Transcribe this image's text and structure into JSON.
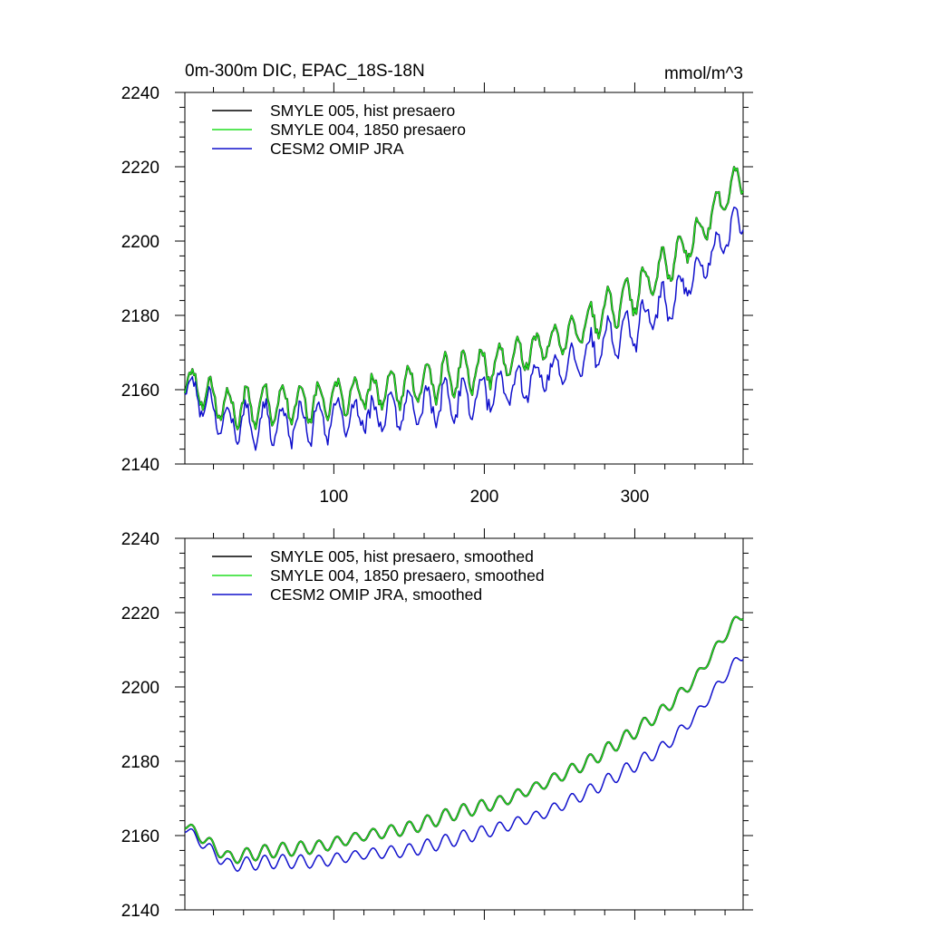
{
  "colors": {
    "hist": "#000000",
    "presaero1850": "#22dd22",
    "omip": "#1010cc"
  },
  "chart_data": [
    {
      "type": "line",
      "title": "0m-300m DIC, EPAC_18S-18N",
      "units": "mmol/m^3",
      "xlabel": "",
      "ylabel": "",
      "xlim": [
        1,
        372
      ],
      "ylim": [
        2140,
        2240
      ],
      "yticks": [
        "2140",
        "2160",
        "2180",
        "2200",
        "2220",
        "2240"
      ],
      "xticks": [
        "100",
        "200",
        "300"
      ],
      "legend": "top-left",
      "trend_knots": {
        "x": [
          1,
          30,
          60,
          90,
          120,
          150,
          180,
          210,
          240,
          270,
          300,
          320,
          340,
          360,
          372
        ],
        "base": [
          2163,
          2155,
          2156,
          2157,
          2159,
          2161,
          2164,
          2167,
          2172,
          2178,
          2186,
          2193,
          2201,
          2212,
          2218
        ],
        "omip_offset": [
          0,
          -3,
          -4,
          -4,
          -5,
          -5,
          -6,
          -6,
          -7,
          -7,
          -8,
          -9,
          -9,
          -10,
          -10
        ]
      },
      "seasonal_amplitude": 4.5,
      "noise_amplitude": 3.0,
      "series": [
        {
          "name": "SMYLE 005, hist presaero",
          "color": "#000000"
        },
        {
          "name": "SMYLE 004, 1850 presaero",
          "color": "#22dd22"
        },
        {
          "name": "CESM2 OMIP JRA",
          "color": "#1010cc"
        }
      ]
    },
    {
      "type": "line",
      "title": "",
      "xlabel": "",
      "ylabel": "",
      "xlim": [
        1,
        372
      ],
      "ylim": [
        2140,
        2240
      ],
      "yticks": [
        "2140",
        "2160",
        "2180",
        "2200",
        "2220",
        "2240"
      ],
      "xticks": [],
      "legend": "top-left",
      "trend_knots": {
        "x": [
          1,
          30,
          60,
          90,
          120,
          150,
          180,
          210,
          240,
          270,
          300,
          320,
          340,
          360,
          372
        ],
        "base": [
          2163,
          2154,
          2156,
          2157,
          2160,
          2162,
          2166,
          2169,
          2174,
          2180,
          2188,
          2194,
          2202,
          2214,
          2220
        ],
        "omip_offset": [
          -1,
          -2,
          -3,
          -4,
          -5,
          -6,
          -7,
          -7,
          -8,
          -8,
          -9,
          -10,
          -10,
          -11,
          -11
        ]
      },
      "seasonal_amplitude": 1.6,
      "noise_amplitude": 0.0,
      "series": [
        {
          "name": "SMYLE 005, hist presaero, smoothed",
          "color": "#000000"
        },
        {
          "name": "SMYLE 004, 1850 presaero, smoothed",
          "color": "#22dd22"
        },
        {
          "name": "CESM2 OMIP JRA, smoothed",
          "color": "#1010cc"
        }
      ]
    }
  ]
}
